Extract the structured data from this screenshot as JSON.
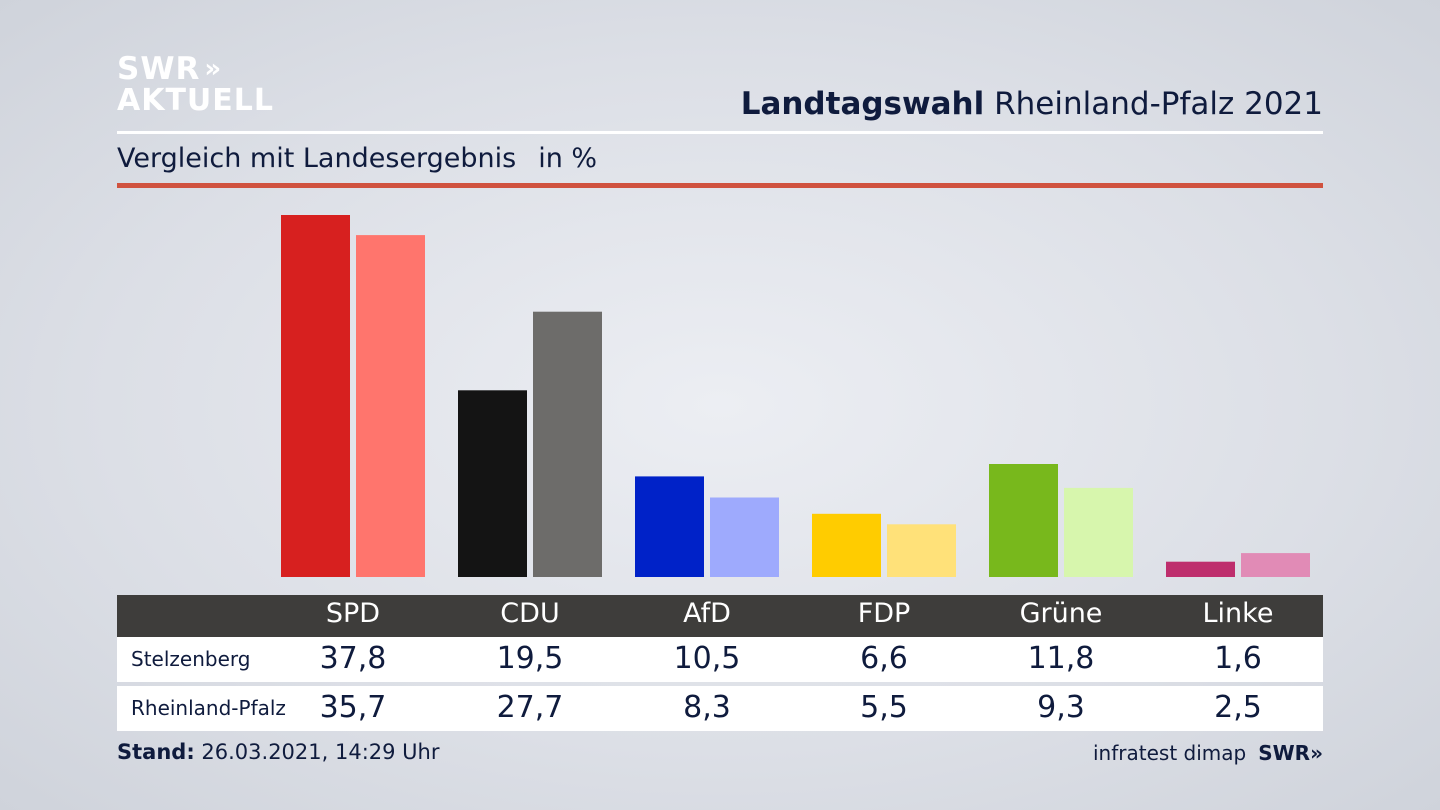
{
  "logo": {
    "line1": "SWR",
    "chevrons": "»",
    "line2": "AKTUELL"
  },
  "header": {
    "title_bold": "Landtagswahl",
    "title_rest": " Rheinland-Pfalz 2021"
  },
  "subheader": {
    "text": "Vergleich mit Landesergebnis",
    "unit": "in %"
  },
  "colors": {
    "SPD": [
      "#d7201f",
      "#ff756d"
    ],
    "CDU": [
      "#141414",
      "#6d6c6a"
    ],
    "AfD": [
      "#0022c8",
      "#9eaafd"
    ],
    "FDP": [
      "#ffcc00",
      "#ffe179"
    ],
    "Grüne": [
      "#78b81c",
      "#d7f6ad"
    ],
    "Linke": [
      "#be2e6d",
      "#e18bb6"
    ]
  },
  "chart_data": {
    "type": "bar",
    "categories": [
      "SPD",
      "CDU",
      "AfD",
      "FDP",
      "Grüne",
      "Linke"
    ],
    "series": [
      {
        "name": "Stelzenberg",
        "values": [
          37.8,
          19.5,
          10.5,
          6.6,
          11.8,
          1.6
        ]
      },
      {
        "name": "Rheinland-Pfalz",
        "values": [
          35.7,
          27.7,
          8.3,
          5.5,
          9.3,
          2.5
        ]
      }
    ],
    "ylim": [
      0,
      37.8
    ]
  },
  "table": {
    "headers": [
      "SPD",
      "CDU",
      "AfD",
      "FDP",
      "Grüne",
      "Linke"
    ],
    "rows": [
      {
        "label": "Stelzenberg",
        "values": [
          "37,8",
          "19,5",
          "10,5",
          "6,6",
          "11,8",
          "1,6"
        ]
      },
      {
        "label": "Rheinland-Pfalz",
        "values": [
          "35,7",
          "27,7",
          "8,3",
          "5,5",
          "9,3",
          "2,5"
        ]
      }
    ]
  },
  "footer": {
    "stand_label": "Stand:",
    "stand_value": " 26.03.2021, 14:29 Uhr",
    "source": "infratest dimap",
    "brand": "SWR»"
  }
}
